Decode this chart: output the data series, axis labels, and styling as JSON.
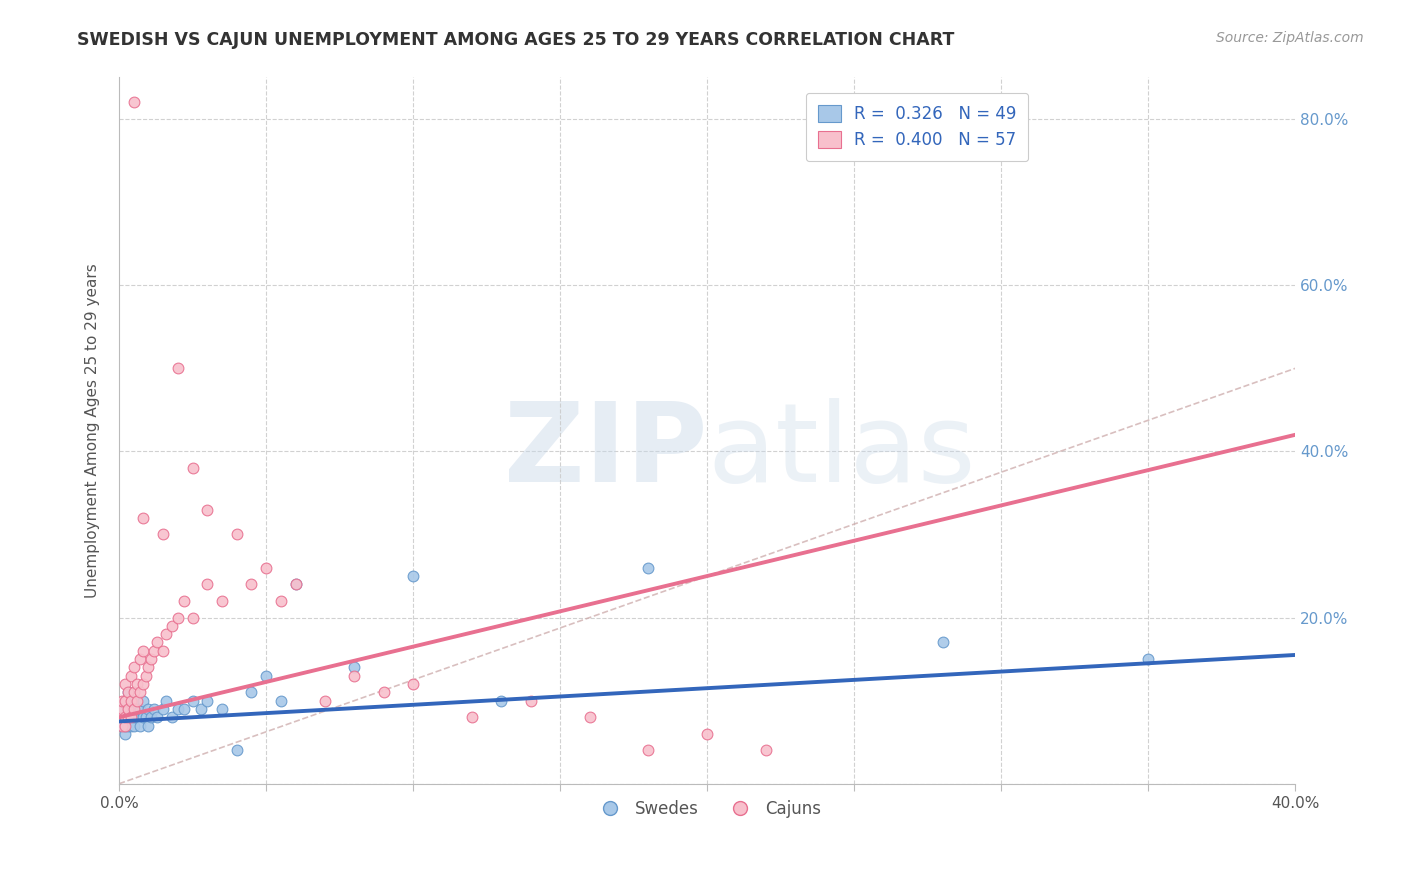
{
  "title": "SWEDISH VS CAJUN UNEMPLOYMENT AMONG AGES 25 TO 29 YEARS CORRELATION CHART",
  "source": "Source: ZipAtlas.com",
  "ylabel": "Unemployment Among Ages 25 to 29 years",
  "xlim": [
    0.0,
    0.4
  ],
  "ylim": [
    0.0,
    0.85
  ],
  "swede_color": "#a8c8e8",
  "swede_edge_color": "#6699cc",
  "cajun_color": "#f8c0cc",
  "cajun_edge_color": "#e87090",
  "swede_line_color": "#3366bb",
  "cajun_line_color": "#e87090",
  "dashed_line_color": "#ccaaaa",
  "background_color": "#ffffff",
  "grid_color": "#cccccc",
  "title_color": "#333333",
  "right_axis_color": "#6699cc",
  "watermark_color": "#c8d8e8",
  "R_swede": 0.326,
  "N_swede": 49,
  "R_cajun": 0.4,
  "N_cajun": 57,
  "swede_line_x": [
    0.0,
    0.4
  ],
  "swede_line_y": [
    0.075,
    0.155
  ],
  "cajun_line_x": [
    0.0,
    0.4
  ],
  "cajun_line_y": [
    0.08,
    0.42
  ],
  "diag_line_x": [
    0.0,
    0.4
  ],
  "diag_line_y": [
    0.0,
    0.5
  ],
  "swede_x": [
    0.001,
    0.001,
    0.001,
    0.002,
    0.002,
    0.002,
    0.002,
    0.003,
    0.003,
    0.003,
    0.003,
    0.004,
    0.004,
    0.004,
    0.005,
    0.005,
    0.005,
    0.006,
    0.006,
    0.007,
    0.007,
    0.008,
    0.008,
    0.009,
    0.01,
    0.01,
    0.011,
    0.012,
    0.013,
    0.015,
    0.016,
    0.018,
    0.02,
    0.022,
    0.025,
    0.028,
    0.03,
    0.035,
    0.04,
    0.045,
    0.05,
    0.055,
    0.06,
    0.08,
    0.1,
    0.13,
    0.18,
    0.28,
    0.35
  ],
  "swede_y": [
    0.07,
    0.08,
    0.09,
    0.06,
    0.07,
    0.08,
    0.1,
    0.07,
    0.08,
    0.09,
    0.11,
    0.07,
    0.08,
    0.09,
    0.07,
    0.08,
    0.1,
    0.08,
    0.09,
    0.07,
    0.09,
    0.08,
    0.1,
    0.08,
    0.07,
    0.09,
    0.08,
    0.09,
    0.08,
    0.09,
    0.1,
    0.08,
    0.09,
    0.09,
    0.1,
    0.09,
    0.1,
    0.09,
    0.04,
    0.11,
    0.13,
    0.1,
    0.24,
    0.14,
    0.25,
    0.1,
    0.26,
    0.17,
    0.15
  ],
  "cajun_x": [
    0.001,
    0.001,
    0.001,
    0.001,
    0.002,
    0.002,
    0.002,
    0.002,
    0.003,
    0.003,
    0.003,
    0.004,
    0.004,
    0.004,
    0.005,
    0.005,
    0.005,
    0.006,
    0.006,
    0.007,
    0.007,
    0.008,
    0.008,
    0.009,
    0.01,
    0.011,
    0.012,
    0.013,
    0.015,
    0.016,
    0.018,
    0.02,
    0.022,
    0.025,
    0.03,
    0.035,
    0.04,
    0.045,
    0.05,
    0.055,
    0.06,
    0.07,
    0.08,
    0.09,
    0.1,
    0.12,
    0.14,
    0.16,
    0.18,
    0.2,
    0.22,
    0.02,
    0.025,
    0.005,
    0.008,
    0.03,
    0.015
  ],
  "cajun_y": [
    0.07,
    0.08,
    0.09,
    0.1,
    0.07,
    0.08,
    0.1,
    0.12,
    0.08,
    0.09,
    0.11,
    0.08,
    0.1,
    0.13,
    0.09,
    0.11,
    0.14,
    0.1,
    0.12,
    0.11,
    0.15,
    0.12,
    0.16,
    0.13,
    0.14,
    0.15,
    0.16,
    0.17,
    0.16,
    0.18,
    0.19,
    0.2,
    0.22,
    0.2,
    0.24,
    0.22,
    0.3,
    0.24,
    0.26,
    0.22,
    0.24,
    0.1,
    0.13,
    0.11,
    0.12,
    0.08,
    0.1,
    0.08,
    0.04,
    0.06,
    0.04,
    0.5,
    0.38,
    0.82,
    0.32,
    0.33,
    0.3
  ]
}
